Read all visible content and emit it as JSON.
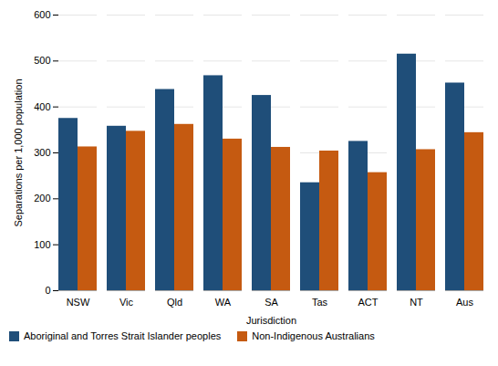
{
  "chart_data": {
    "type": "bar",
    "categories": [
      "NSW",
      "Vic",
      "Qld",
      "WA",
      "SA",
      "Tas",
      "ACT",
      "NT",
      "Aus"
    ],
    "series": [
      {
        "name": "Aboriginal and Torres Strait Islander peoples",
        "color": "#1F4E79",
        "values": [
          375,
          358,
          438,
          468,
          425,
          235,
          325,
          515,
          452
        ]
      },
      {
        "name": "Non-Indigenous Australians",
        "color": "#C55A11",
        "values": [
          313,
          347,
          362,
          330,
          312,
          304,
          257,
          307,
          344
        ]
      }
    ],
    "xlabel": "Jurisdiction",
    "ylabel": "Separations per 1,000 population",
    "ylim": [
      0,
      600
    ],
    "yticks": [
      0,
      100,
      200,
      300,
      400,
      500,
      600
    ],
    "grid": true,
    "legend": "bottom"
  }
}
